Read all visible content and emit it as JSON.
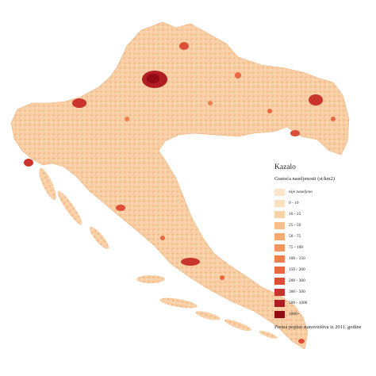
{
  "legend": {
    "title": "Kazalo",
    "subtitle": "Gustoća naseljenosti (st/km2)",
    "items": [
      {
        "label": "nije naseljeno",
        "color": "#fde5cc",
        "italic": true
      },
      {
        "label": "0 - 10",
        "color": "#fce0bd"
      },
      {
        "label": "10 - 25",
        "color": "#fbd2a6"
      },
      {
        "label": "25 - 50",
        "color": "#f9bf8a"
      },
      {
        "label": "50 - 75",
        "color": "#f7aa70"
      },
      {
        "label": "75 - 100",
        "color": "#f4955b"
      },
      {
        "label": "100 - 150",
        "color": "#ef7f4c"
      },
      {
        "label": "150 - 200",
        "color": "#e86840"
      },
      {
        "label": "200 - 300",
        "color": "#dc4f37"
      },
      {
        "label": "300 - 500",
        "color": "#c9342c"
      },
      {
        "label": "500 - 1000",
        "color": "#b01d22"
      },
      {
        "label": "1000+",
        "color": "#920b15"
      }
    ],
    "note": "Prema popisu stanovništva iz 2011. godine"
  },
  "map": {
    "land_color": "#f7c79a",
    "border_color": "#fbe3cc",
    "hotspot_color": "#b01d22"
  }
}
